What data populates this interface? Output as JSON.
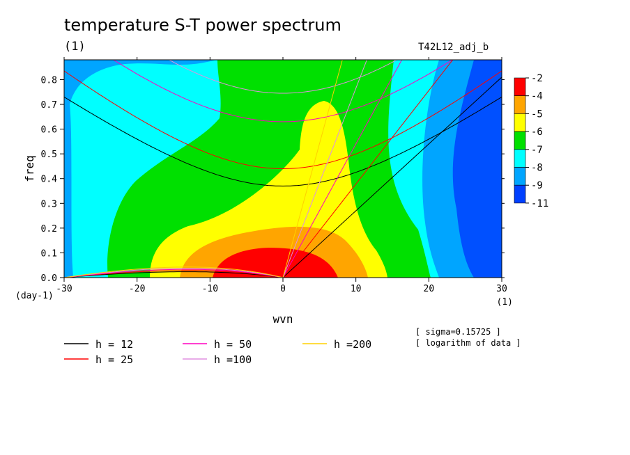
{
  "chart_data": {
    "type": "heatmap",
    "title": "temperature S-T power spectrum",
    "subtitle": "(1)",
    "run_name": "T42L12_adj_b",
    "xlabel": "wvn",
    "x_unit": "(1)",
    "ylabel": "freq",
    "y_unit": "(day-1)",
    "xlim": [
      -30,
      30
    ],
    "ylim": [
      0.0,
      0.88
    ],
    "x_ticks": [
      "-30",
      "-20",
      "-10",
      "0",
      "10",
      "20",
      "30"
    ],
    "y_ticks": [
      "0.0",
      "0.1",
      "0.2",
      "0.3",
      "0.4",
      "0.5",
      "0.6",
      "0.7",
      "0.8"
    ],
    "colorbar": {
      "labels": [
        "-2",
        "-4",
        "-5",
        "-6",
        "-7",
        "-8",
        "-9",
        "-11"
      ],
      "colors": [
        "#ff0000",
        "#ffa500",
        "#ffff00",
        "#00e000",
        "#00ffff",
        "#00a5ff",
        "#0040ff"
      ]
    },
    "level_colors": {
      "very_low": "#0050ff",
      "low": "#00a5ff",
      "mid_low": "#00ffff",
      "mid": "#00e000",
      "mid_high": "#ffff00",
      "high": "#ffa500",
      "peak": "#ff0000"
    },
    "dispersion_curves": [
      {
        "label": "h = 12",
        "h": 12,
        "color": "#000000"
      },
      {
        "label": "h = 25",
        "h": 25,
        "color": "#ff0000"
      },
      {
        "label": "h = 50",
        "h": 50,
        "color": "#ff00c0"
      },
      {
        "label": "h =100",
        "h": 100,
        "color": "#e090e0"
      },
      {
        "label": "h =200",
        "h": 200,
        "color": "#ffd000"
      }
    ],
    "notes": [
      "[ sigma=0.15725 ]",
      "[ logarithm of data ]"
    ]
  }
}
